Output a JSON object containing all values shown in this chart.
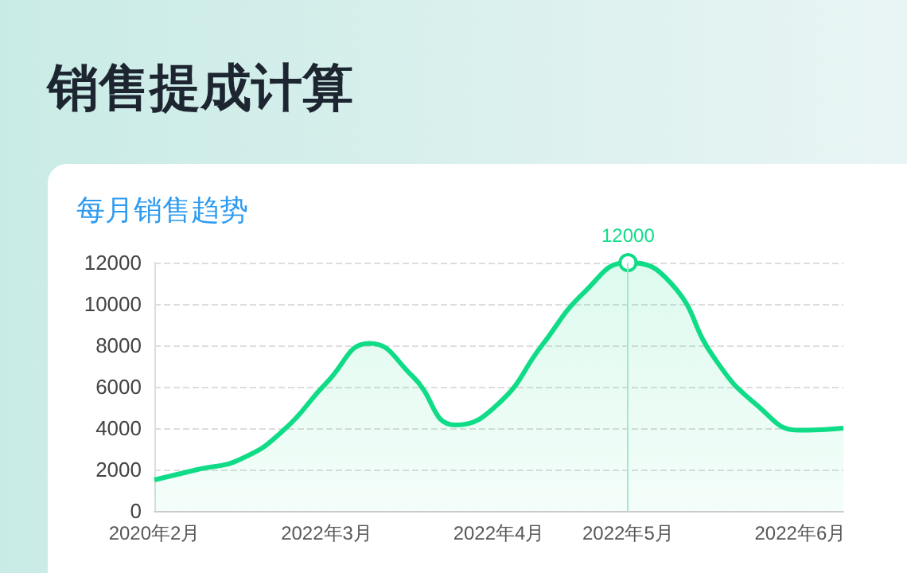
{
  "chart_data": {
    "type": "area",
    "title": "销售提成计算",
    "subtitle": "每月销售趋势",
    "categories": [
      "2020年2月",
      null,
      null,
      null,
      "2022年3月",
      null,
      null,
      null,
      "2022年4月",
      null,
      null,
      "2022年5月",
      null,
      null,
      null,
      "2022年6月",
      null
    ],
    "series": [
      {
        "color": "#10dc87",
        "values": [
          1500,
          2000,
          2500,
          3900,
          6200,
          8100,
          6500,
          4150,
          5200,
          8000,
          10600,
          12000,
          11000,
          7400,
          5100,
          3900,
          4000
        ],
        "value_labels": [
          null,
          null,
          null,
          null,
          null,
          null,
          null,
          null,
          null,
          null,
          null,
          "12000",
          null,
          null,
          null,
          null,
          null
        ]
      }
    ],
    "ylim": [
      0,
      12000
    ],
    "yticks": [
      0,
      2000,
      4000,
      6000,
      8000,
      10000,
      12000
    ],
    "grid": "y",
    "marker": "none",
    "line_style": "solid",
    "ref_lines": [
      {
        "axis": "x",
        "value": "2022年5月",
        "color": "#a8e6cc"
      }
    ]
  }
}
